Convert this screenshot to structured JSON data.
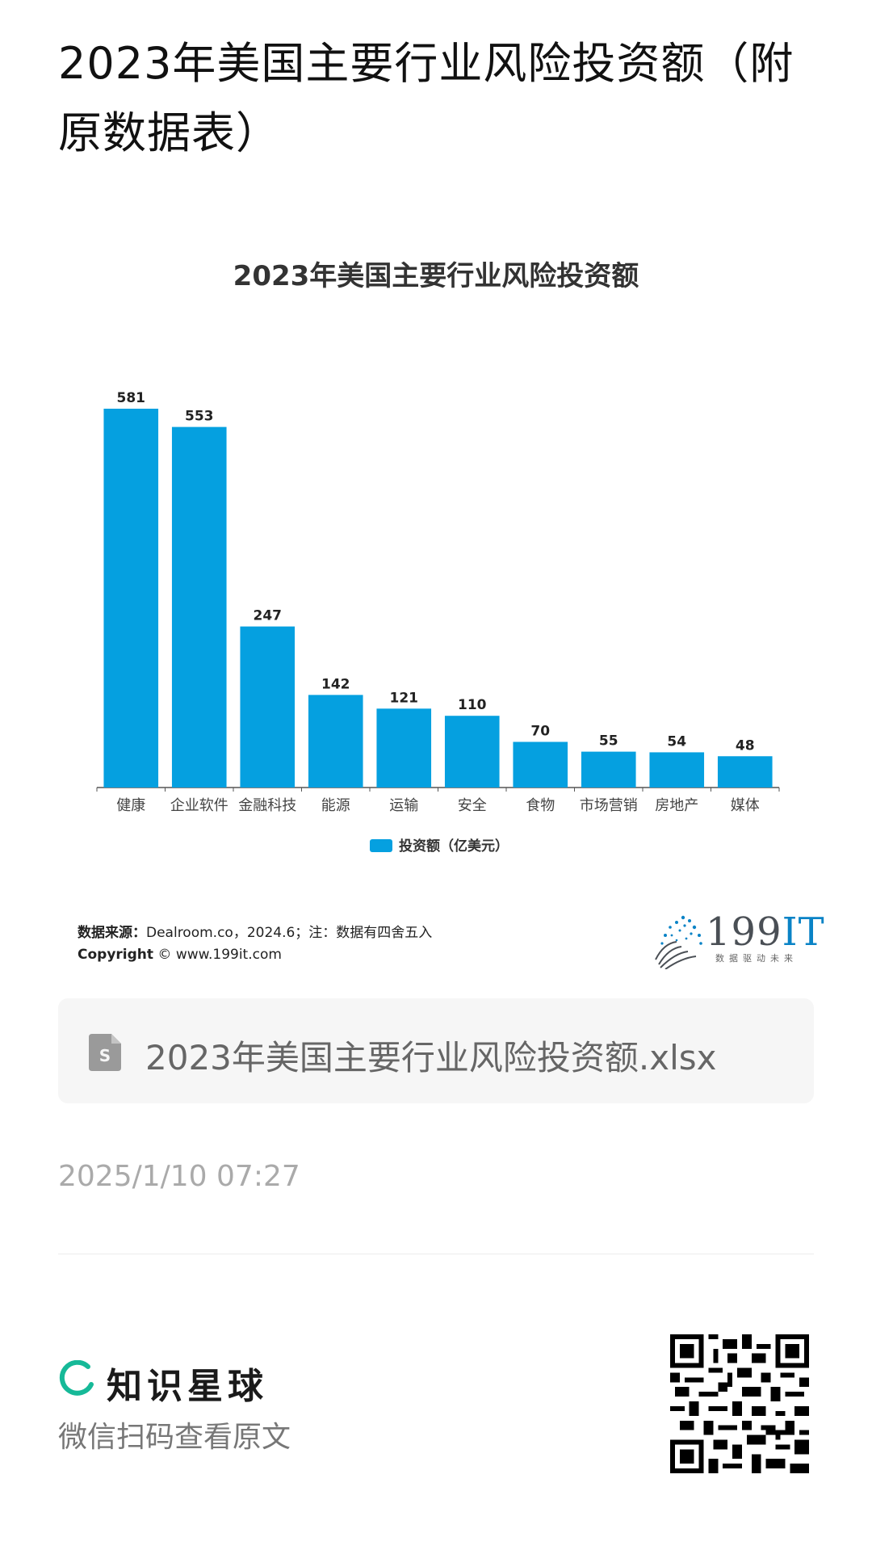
{
  "page_title": "2023年美国主要行业风险投资额（附原数据表）",
  "chart_data": {
    "type": "bar",
    "title": "2023年美国主要行业风险投资额",
    "categories": [
      "健康",
      "企业软件",
      "金融科技",
      "能源",
      "运输",
      "安全",
      "食物",
      "市场营销",
      "房地产",
      "媒体"
    ],
    "series": [
      {
        "name": "投资额（亿美元）",
        "values": [
          581,
          553,
          247,
          142,
          121,
          110,
          70,
          55,
          54,
          48
        ]
      }
    ],
    "ylim": [
      0,
      581
    ],
    "legend_position": "bottom",
    "grid": false,
    "bar_color": "#05a0e0"
  },
  "source": {
    "label": "数据来源：",
    "text": "Dealroom.co，2024.6；注：数据有四舍五入",
    "copyright_label": "Copyright",
    "copyright_text": "© www.199it.com"
  },
  "logo": {
    "text_num": "199",
    "text_it": "IT",
    "subtitle": "数据驱动未来"
  },
  "file": {
    "name": "2023年美国主要行业风险投资额.xlsx",
    "icon": "spreadsheet-file-icon"
  },
  "timestamp": "2025/1/10 07:27",
  "footer": {
    "brand_name": "知识星球",
    "tagline": "微信扫码查看原文",
    "brand_color": "#16b998"
  }
}
